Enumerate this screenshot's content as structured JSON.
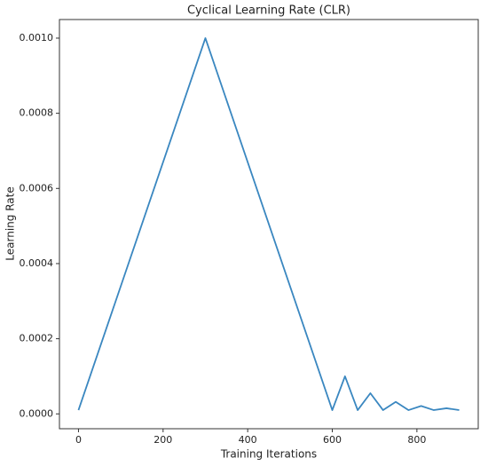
{
  "chart_data": {
    "type": "line",
    "title": "Cyclical Learning Rate (CLR)",
    "x_label": "Training Iterations",
    "y_label": "Learning Rate",
    "x": [
      0,
      300,
      600,
      630,
      660,
      690,
      720,
      750,
      780,
      810,
      840,
      870,
      900
    ],
    "values": [
      1e-05,
      0.001,
      1e-05,
      0.0001,
      1e-05,
      5.5e-05,
      1e-05,
      3.2e-05,
      1e-05,
      2.1e-05,
      1e-05,
      1.5e-05,
      1e-05
    ],
    "color": "#3a87c0",
    "xlim": [
      -45,
      945
    ],
    "xticks": [
      0,
      200,
      400,
      600,
      800
    ],
    "ylim": [
      -3.95e-05,
      0.0010495
    ],
    "yticks": [
      {
        "value": 0,
        "label": "0.0000"
      },
      {
        "value": 0.0002,
        "label": "0.0002"
      },
      {
        "value": 0.0004,
        "label": "0.0004"
      },
      {
        "value": 0.0006,
        "label": "0.0006"
      },
      {
        "value": 0.0008,
        "label": "0.0008"
      },
      {
        "value": 0.001,
        "label": "0.0010"
      }
    ],
    "grid": false
  }
}
